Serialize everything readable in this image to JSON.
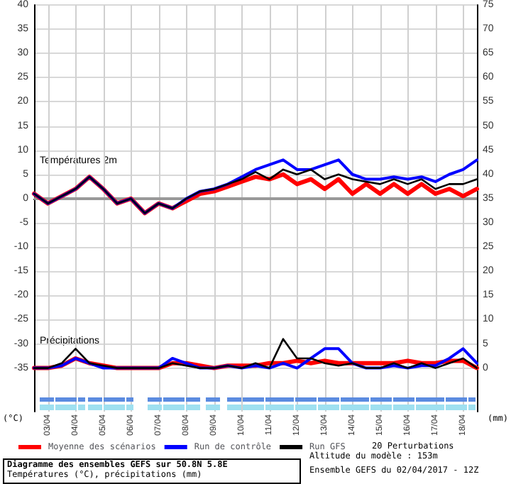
{
  "chart_data": {
    "type": "line",
    "title": "Diagramme des ensembles GEFS sur 50.8N 5.8E",
    "subtitle": "Températures (°C), précipitations (mm)",
    "ylabel": "(°C)",
    "y2label": "(mm)",
    "annotations": [
      "Températures 2m",
      "Précipitations",
      "Altitude du modèle : 153m",
      "20 Perturbations",
      "Ensemble GEFS du 02/04/2017 - 12Z"
    ],
    "x": [
      "2017-04-02T12:00",
      "2017-04-03T00:00",
      "2017-04-03T12:00",
      "2017-04-04T00:00",
      "2017-04-04T12:00",
      "2017-04-05T00:00",
      "2017-04-05T12:00",
      "2017-04-06T00:00",
      "2017-04-06T12:00",
      "2017-04-07T00:00",
      "2017-04-07T12:00",
      "2017-04-08T00:00",
      "2017-04-08T12:00",
      "2017-04-09T00:00",
      "2017-04-09T12:00",
      "2017-04-10T00:00",
      "2017-04-10T12:00",
      "2017-04-11T00:00",
      "2017-04-11T12:00",
      "2017-04-12T00:00",
      "2017-04-12T12:00",
      "2017-04-13T00:00",
      "2017-04-13T12:00",
      "2017-04-14T00:00",
      "2017-04-14T12:00",
      "2017-04-15T00:00",
      "2017-04-15T12:00",
      "2017-04-16T00:00",
      "2017-04-16T12:00",
      "2017-04-17T00:00",
      "2017-04-17T12:00",
      "2017-04-18T00:00",
      "2017-04-18T12:00"
    ],
    "series": [
      {
        "name": "Moyenne des scénarios",
        "color": "#ff0000",
        "values": [
          1,
          -1,
          0.5,
          2,
          4.5,
          2,
          -1,
          0,
          -3,
          -1,
          -2,
          -0.5,
          1,
          1.5,
          2.5,
          3.5,
          4.5,
          4,
          5,
          3,
          4,
          2,
          4,
          1,
          3,
          1,
          3,
          1,
          3,
          1,
          2,
          0.5,
          2
        ]
      },
      {
        "name": "Run de contrôle",
        "color": "#0000ff",
        "values": [
          1,
          -1,
          0.5,
          2,
          4.5,
          2,
          -1,
          0,
          -3,
          -1,
          -2,
          0,
          1.5,
          2,
          3,
          4.5,
          6,
          7,
          8,
          6,
          6,
          7,
          8,
          5,
          4,
          4,
          4.5,
          4,
          4.5,
          3.5,
          5,
          6,
          8
        ]
      },
      {
        "name": "Run GFS",
        "color": "#000000",
        "values": [
          1,
          -1,
          0.5,
          2,
          4.5,
          2,
          -1,
          0,
          -3,
          -1,
          -2,
          0,
          1.5,
          2,
          3,
          4,
          5.5,
          4,
          6,
          5,
          6,
          4,
          5,
          4,
          3.5,
          3,
          4,
          3,
          4,
          2,
          3,
          3,
          4
        ]
      },
      {
        "color": "#ff0000",
        "axis": "y2",
        "values": [
          0,
          0,
          0.5,
          2,
          1,
          0.5,
          0,
          0,
          0,
          0,
          1,
          1,
          0.5,
          0,
          0.5,
          0.5,
          0.5,
          1,
          1,
          1.5,
          1,
          1.5,
          1,
          1,
          1,
          1,
          1,
          1.5,
          1,
          1,
          1.5,
          1.5,
          0
        ]
      },
      {
        "color": "#0000ff",
        "axis": "y2",
        "values": [
          0,
          0,
          0.5,
          2,
          1,
          0,
          0,
          0,
          0,
          0,
          2,
          1,
          0,
          0,
          0.5,
          0,
          0.5,
          0,
          1,
          0,
          2,
          4,
          4,
          1,
          0,
          0,
          0.5,
          0,
          0.5,
          0.5,
          2,
          4,
          1
        ]
      },
      {
        "color": "#000000",
        "axis": "y2",
        "values": [
          0,
          0,
          1,
          4,
          1,
          0.5,
          0,
          0,
          0,
          0,
          1,
          0.5,
          0,
          0,
          0.5,
          0,
          1,
          0,
          6,
          2,
          2,
          1,
          0.5,
          1,
          0,
          0,
          1,
          0,
          1,
          0,
          1,
          2,
          0
        ]
      }
    ],
    "xlim": [
      "2017-04-02T12:00",
      "2017-04-18T12:00"
    ],
    "xticks": [
      {
        "value": "2017-04-03",
        "label": "03/04"
      },
      {
        "value": "2017-04-04",
        "label": "04/04"
      },
      {
        "value": "2017-04-05",
        "label": "05/04"
      },
      {
        "value": "2017-04-06",
        "label": "06/04"
      },
      {
        "value": "2017-04-07",
        "label": "07/04"
      },
      {
        "value": "2017-04-08",
        "label": "08/04"
      },
      {
        "value": "2017-04-09",
        "label": "09/04"
      },
      {
        "value": "2017-04-10",
        "label": "10/04"
      },
      {
        "value": "2017-04-11",
        "label": "11/04"
      },
      {
        "value": "2017-04-12",
        "label": "12/04"
      },
      {
        "value": "2017-04-13",
        "label": "13/04"
      },
      {
        "value": "2017-04-14",
        "label": "14/04"
      },
      {
        "value": "2017-04-15",
        "label": "15/04"
      },
      {
        "value": "2017-04-16",
        "label": "16/04"
      },
      {
        "value": "2017-04-17",
        "label": "17/04"
      },
      {
        "value": "2017-04-18",
        "label": "18/04"
      }
    ],
    "ylim": [
      -44,
      40
    ],
    "yticks": [
      -35,
      -30,
      -25,
      -20,
      -15,
      -10,
      -5,
      0,
      5,
      10,
      15,
      20,
      25,
      30,
      35,
      40
    ],
    "y2lim": [
      -9,
      75
    ],
    "y2ticks": [
      0,
      5,
      10,
      15,
      20,
      25,
      30,
      35,
      40,
      45,
      50,
      55,
      60,
      65,
      70,
      75
    ],
    "ref_lines": [
      {
        "axis": "y",
        "value": 0,
        "color": "#999999"
      }
    ],
    "grid": true,
    "legend": "bottom left",
    "marker": "none",
    "line_style": "solid"
  }
}
